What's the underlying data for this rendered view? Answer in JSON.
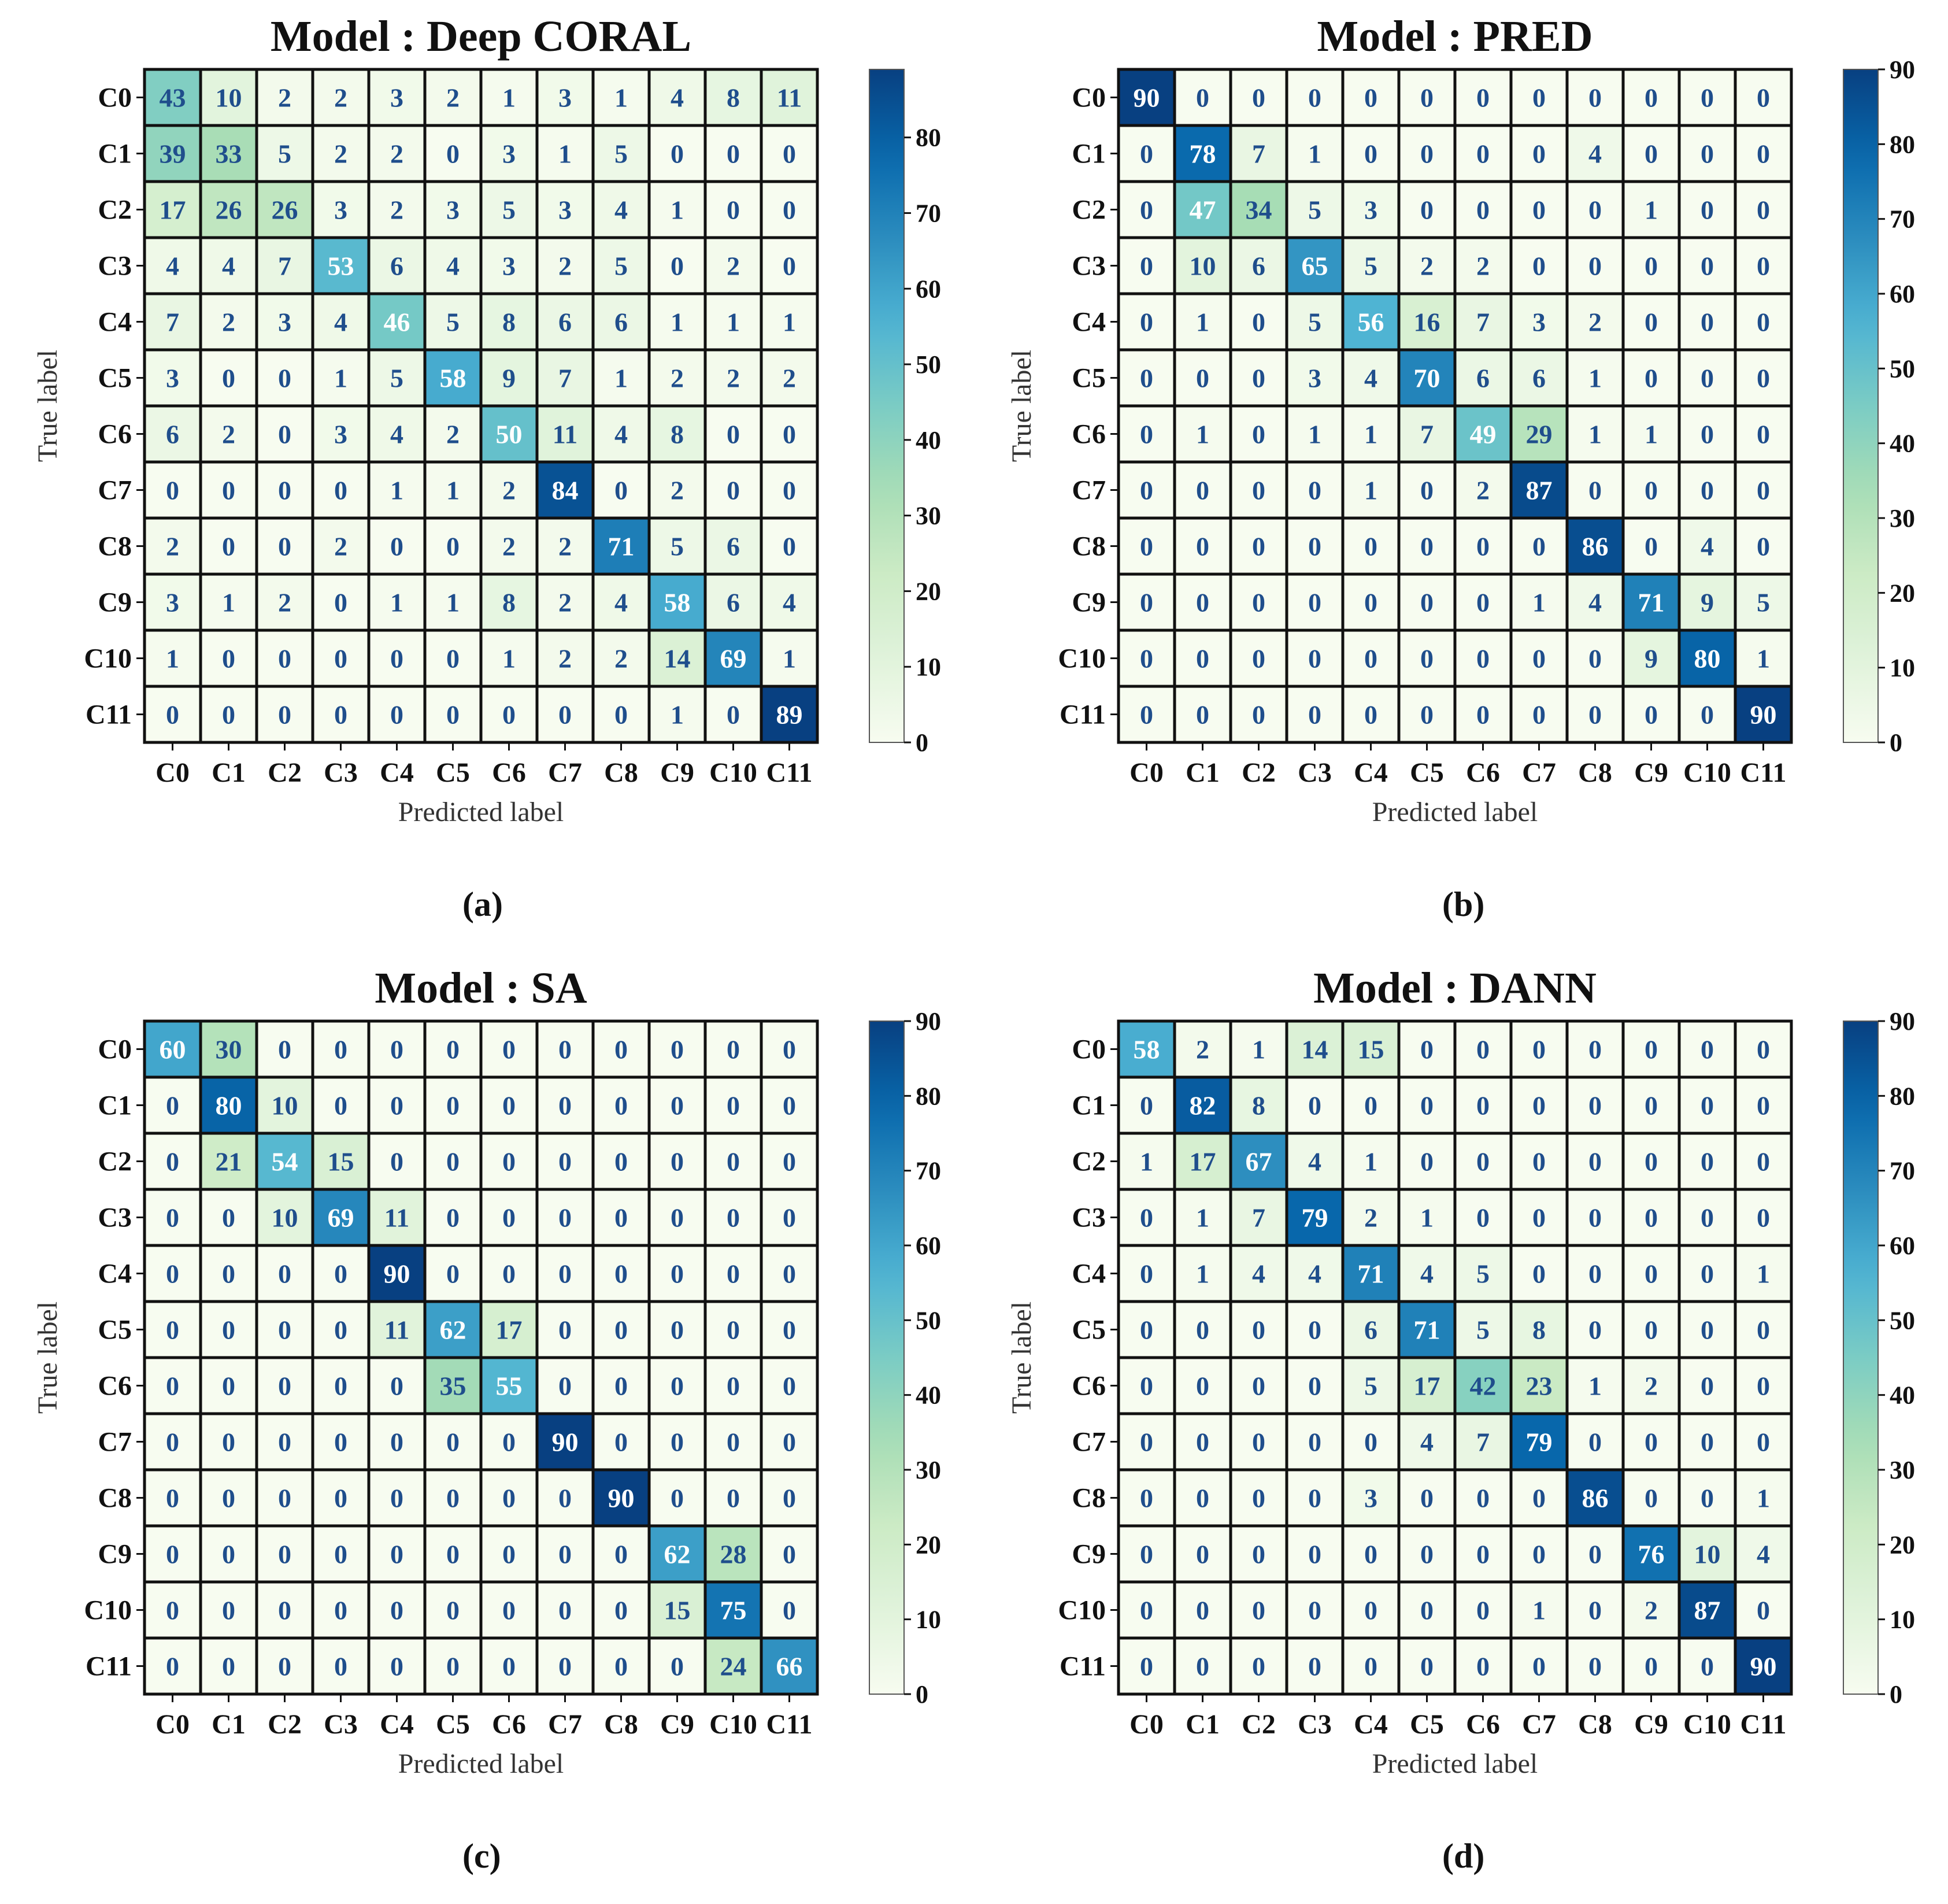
{
  "figure": {
    "captions": [
      "(a)",
      "(b)",
      "(c)",
      "(d)"
    ]
  },
  "chart_data": [
    {
      "type": "heatmap",
      "title": "Model : Deep CORAL",
      "xlabel": "Predicted label",
      "ylabel": "True label",
      "x_categories": [
        "C0",
        "C1",
        "C2",
        "C3",
        "C4",
        "C5",
        "C6",
        "C7",
        "C8",
        "C9",
        "C10",
        "C11"
      ],
      "y_categories": [
        "C0",
        "C1",
        "C2",
        "C3",
        "C4",
        "C5",
        "C6",
        "C7",
        "C8",
        "C9",
        "C10",
        "C11"
      ],
      "values": [
        [
          43,
          10,
          2,
          2,
          3,
          2,
          1,
          3,
          1,
          4,
          8,
          11
        ],
        [
          39,
          33,
          5,
          2,
          2,
          0,
          3,
          1,
          5,
          0,
          0,
          0
        ],
        [
          17,
          26,
          26,
          3,
          2,
          3,
          5,
          3,
          4,
          1,
          0,
          0
        ],
        [
          4,
          4,
          7,
          53,
          6,
          4,
          3,
          2,
          5,
          0,
          2,
          0
        ],
        [
          7,
          2,
          3,
          4,
          46,
          5,
          8,
          6,
          6,
          1,
          1,
          1
        ],
        [
          3,
          0,
          0,
          1,
          5,
          58,
          9,
          7,
          1,
          2,
          2,
          2
        ],
        [
          6,
          2,
          0,
          3,
          4,
          2,
          50,
          11,
          4,
          8,
          0,
          0
        ],
        [
          0,
          0,
          0,
          0,
          1,
          1,
          2,
          84,
          0,
          2,
          0,
          0
        ],
        [
          2,
          0,
          0,
          2,
          0,
          0,
          2,
          2,
          71,
          5,
          6,
          0
        ],
        [
          3,
          1,
          2,
          0,
          1,
          1,
          8,
          2,
          4,
          58,
          6,
          4
        ],
        [
          1,
          0,
          0,
          0,
          0,
          0,
          1,
          2,
          2,
          14,
          69,
          1
        ],
        [
          0,
          0,
          0,
          0,
          0,
          0,
          0,
          0,
          0,
          1,
          0,
          89
        ]
      ],
      "colorbar": {
        "range": [
          0,
          89
        ],
        "ticks": [
          0,
          10,
          20,
          30,
          40,
          50,
          60,
          70,
          80
        ]
      }
    },
    {
      "type": "heatmap",
      "title": "Model : PRED",
      "xlabel": "Predicted label",
      "ylabel": "True label",
      "x_categories": [
        "C0",
        "C1",
        "C2",
        "C3",
        "C4",
        "C5",
        "C6",
        "C7",
        "C8",
        "C9",
        "C10",
        "C11"
      ],
      "y_categories": [
        "C0",
        "C1",
        "C2",
        "C3",
        "C4",
        "C5",
        "C6",
        "C7",
        "C8",
        "C9",
        "C10",
        "C11"
      ],
      "values": [
        [
          90,
          0,
          0,
          0,
          0,
          0,
          0,
          0,
          0,
          0,
          0,
          0
        ],
        [
          0,
          78,
          7,
          1,
          0,
          0,
          0,
          0,
          4,
          0,
          0,
          0
        ],
        [
          0,
          47,
          34,
          5,
          3,
          0,
          0,
          0,
          0,
          1,
          0,
          0
        ],
        [
          0,
          10,
          6,
          65,
          5,
          2,
          2,
          0,
          0,
          0,
          0,
          0
        ],
        [
          0,
          1,
          0,
          5,
          56,
          16,
          7,
          3,
          2,
          0,
          0,
          0
        ],
        [
          0,
          0,
          0,
          3,
          4,
          70,
          6,
          6,
          1,
          0,
          0,
          0
        ],
        [
          0,
          1,
          0,
          1,
          1,
          7,
          49,
          29,
          1,
          1,
          0,
          0
        ],
        [
          0,
          0,
          0,
          0,
          1,
          0,
          2,
          87,
          0,
          0,
          0,
          0
        ],
        [
          0,
          0,
          0,
          0,
          0,
          0,
          0,
          0,
          86,
          0,
          4,
          0
        ],
        [
          0,
          0,
          0,
          0,
          0,
          0,
          0,
          1,
          4,
          71,
          9,
          5
        ],
        [
          0,
          0,
          0,
          0,
          0,
          0,
          0,
          0,
          0,
          9,
          80,
          1
        ],
        [
          0,
          0,
          0,
          0,
          0,
          0,
          0,
          0,
          0,
          0,
          0,
          90
        ]
      ],
      "colorbar": {
        "range": [
          0,
          90
        ],
        "ticks": [
          0,
          10,
          20,
          30,
          40,
          50,
          60,
          70,
          80,
          90
        ]
      }
    },
    {
      "type": "heatmap",
      "title": "Model : SA",
      "xlabel": "Predicted label",
      "ylabel": "True label",
      "x_categories": [
        "C0",
        "C1",
        "C2",
        "C3",
        "C4",
        "C5",
        "C6",
        "C7",
        "C8",
        "C9",
        "C10",
        "C11"
      ],
      "y_categories": [
        "C0",
        "C1",
        "C2",
        "C3",
        "C4",
        "C5",
        "C6",
        "C7",
        "C8",
        "C9",
        "C10",
        "C11"
      ],
      "values": [
        [
          60,
          30,
          0,
          0,
          0,
          0,
          0,
          0,
          0,
          0,
          0,
          0
        ],
        [
          0,
          80,
          10,
          0,
          0,
          0,
          0,
          0,
          0,
          0,
          0,
          0
        ],
        [
          0,
          21,
          54,
          15,
          0,
          0,
          0,
          0,
          0,
          0,
          0,
          0
        ],
        [
          0,
          0,
          10,
          69,
          11,
          0,
          0,
          0,
          0,
          0,
          0,
          0
        ],
        [
          0,
          0,
          0,
          0,
          90,
          0,
          0,
          0,
          0,
          0,
          0,
          0
        ],
        [
          0,
          0,
          0,
          0,
          11,
          62,
          17,
          0,
          0,
          0,
          0,
          0
        ],
        [
          0,
          0,
          0,
          0,
          0,
          35,
          55,
          0,
          0,
          0,
          0,
          0
        ],
        [
          0,
          0,
          0,
          0,
          0,
          0,
          0,
          90,
          0,
          0,
          0,
          0
        ],
        [
          0,
          0,
          0,
          0,
          0,
          0,
          0,
          0,
          90,
          0,
          0,
          0
        ],
        [
          0,
          0,
          0,
          0,
          0,
          0,
          0,
          0,
          0,
          62,
          28,
          0
        ],
        [
          0,
          0,
          0,
          0,
          0,
          0,
          0,
          0,
          0,
          15,
          75,
          0
        ],
        [
          0,
          0,
          0,
          0,
          0,
          0,
          0,
          0,
          0,
          0,
          24,
          66
        ]
      ],
      "colorbar": {
        "range": [
          0,
          90
        ],
        "ticks": [
          0,
          10,
          20,
          30,
          40,
          50,
          60,
          70,
          80,
          90
        ]
      }
    },
    {
      "type": "heatmap",
      "title": "Model : DANN",
      "xlabel": "Predicted label",
      "ylabel": "True label",
      "x_categories": [
        "C0",
        "C1",
        "C2",
        "C3",
        "C4",
        "C5",
        "C6",
        "C7",
        "C8",
        "C9",
        "C10",
        "C11"
      ],
      "y_categories": [
        "C0",
        "C1",
        "C2",
        "C3",
        "C4",
        "C5",
        "C6",
        "C7",
        "C8",
        "C9",
        "C10",
        "C11"
      ],
      "values": [
        [
          58,
          2,
          1,
          14,
          15,
          0,
          0,
          0,
          0,
          0,
          0,
          0
        ],
        [
          0,
          82,
          8,
          0,
          0,
          0,
          0,
          0,
          0,
          0,
          0,
          0
        ],
        [
          1,
          17,
          67,
          4,
          1,
          0,
          0,
          0,
          0,
          0,
          0,
          0
        ],
        [
          0,
          1,
          7,
          79,
          2,
          1,
          0,
          0,
          0,
          0,
          0,
          0
        ],
        [
          0,
          1,
          4,
          4,
          71,
          4,
          5,
          0,
          0,
          0,
          0,
          1
        ],
        [
          0,
          0,
          0,
          0,
          6,
          71,
          5,
          8,
          0,
          0,
          0,
          0
        ],
        [
          0,
          0,
          0,
          0,
          5,
          17,
          42,
          23,
          1,
          2,
          0,
          0
        ],
        [
          0,
          0,
          0,
          0,
          0,
          4,
          7,
          79,
          0,
          0,
          0,
          0
        ],
        [
          0,
          0,
          0,
          0,
          3,
          0,
          0,
          0,
          86,
          0,
          0,
          1
        ],
        [
          0,
          0,
          0,
          0,
          0,
          0,
          0,
          0,
          0,
          76,
          10,
          4
        ],
        [
          0,
          0,
          0,
          0,
          0,
          0,
          0,
          1,
          0,
          2,
          87,
          0
        ],
        [
          0,
          0,
          0,
          0,
          0,
          0,
          0,
          0,
          0,
          0,
          0,
          90
        ]
      ],
      "colorbar": {
        "range": [
          0,
          90
        ],
        "ticks": [
          0,
          10,
          20,
          30,
          40,
          50,
          60,
          70,
          80,
          90
        ]
      }
    }
  ]
}
